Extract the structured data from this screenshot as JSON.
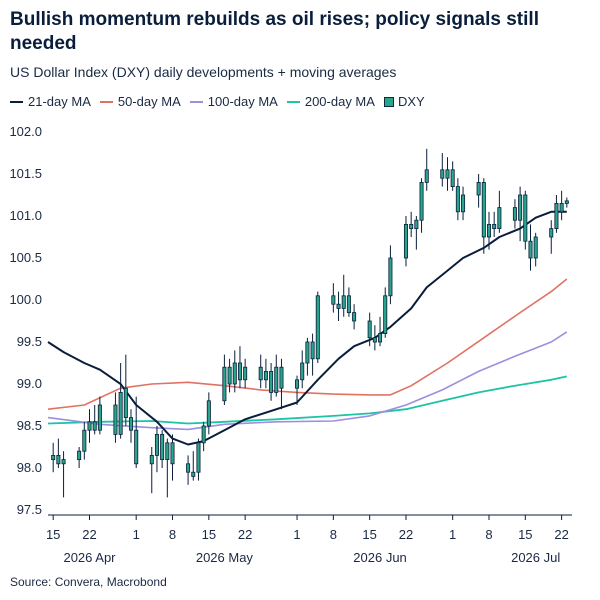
{
  "header": {
    "title": "Bullish momentum rebuilds as oil rises; policy signals still needed",
    "subtitle": "US Dollar Index (DXY) daily developments + moving averages"
  },
  "footer": {
    "source": "Source: Convera, Macrobond"
  },
  "colors": {
    "ma21": "#0a1e3c",
    "ma50": "#e07264",
    "ma100": "#9b8fe0",
    "ma200": "#1cc4a4",
    "candle": "#2aa58c",
    "wick": "#0a1e3c"
  },
  "chart_data": {
    "type": "candlestick",
    "title": "Bullish momentum rebuilds as oil rises; policy signals still needed",
    "subtitle": "US Dollar Index (DXY) daily developments + moving averages",
    "ylim": [
      97.5,
      102.0
    ],
    "yticks": [
      "97.5",
      "98.0",
      "98.5",
      "99.0",
      "99.5",
      "100.0",
      "100.5",
      "101.0",
      "101.5",
      "102.0"
    ],
    "xlim": [
      "2026-04-14",
      "2026-07-24"
    ],
    "xticks": [
      {
        "date": "2026-04-15",
        "label": "15"
      },
      {
        "date": "2026-04-22",
        "label": "22"
      },
      {
        "date": "2026-05-01",
        "label": "1"
      },
      {
        "date": "2026-05-08",
        "label": "8"
      },
      {
        "date": "2026-05-15",
        "label": "15"
      },
      {
        "date": "2026-05-22",
        "label": "22"
      },
      {
        "date": "2026-06-01",
        "label": "1"
      },
      {
        "date": "2026-06-08",
        "label": "8"
      },
      {
        "date": "2026-06-15",
        "label": "15"
      },
      {
        "date": "2026-06-22",
        "label": "22"
      },
      {
        "date": "2026-07-01",
        "label": "1"
      },
      {
        "date": "2026-07-08",
        "label": "8"
      },
      {
        "date": "2026-07-15",
        "label": "15"
      },
      {
        "date": "2026-07-22",
        "label": "22"
      }
    ],
    "months": [
      {
        "date": "2026-04-22",
        "label": "2026 Apr"
      },
      {
        "date": "2026-05-18",
        "label": "2026 May"
      },
      {
        "date": "2026-06-17",
        "label": "2026 Jun"
      },
      {
        "date": "2026-07-17",
        "label": "2026 Jul"
      }
    ],
    "legend": [
      "21-day MA",
      "50-day MA",
      "100-day MA",
      "200-day MA",
      "DXY"
    ],
    "legend_placement": "top-left",
    "grid": false,
    "candles": [
      {
        "d": "2026-04-15",
        "o": 98.1,
        "h": 98.3,
        "l": 97.95,
        "c": 98.15
      },
      {
        "d": "2026-04-16",
        "o": 98.15,
        "h": 98.35,
        "l": 98.0,
        "c": 98.05
      },
      {
        "d": "2026-04-17",
        "o": 98.05,
        "h": 98.2,
        "l": 97.65,
        "c": 98.1
      },
      {
        "d": "2026-04-20",
        "o": 98.1,
        "h": 98.25,
        "l": 98.0,
        "c": 98.2
      },
      {
        "d": "2026-04-21",
        "o": 98.2,
        "h": 98.55,
        "l": 98.1,
        "c": 98.45
      },
      {
        "d": "2026-04-22",
        "o": 98.45,
        "h": 98.7,
        "l": 98.3,
        "c": 98.55
      },
      {
        "d": "2026-04-23",
        "o": 98.55,
        "h": 98.75,
        "l": 98.4,
        "c": 98.45
      },
      {
        "d": "2026-04-24",
        "o": 98.45,
        "h": 98.85,
        "l": 98.4,
        "c": 98.75
      },
      {
        "d": "2026-04-27",
        "o": 98.75,
        "h": 98.9,
        "l": 98.3,
        "c": 98.4
      },
      {
        "d": "2026-04-28",
        "o": 98.4,
        "h": 99.25,
        "l": 98.35,
        "c": 98.9
      },
      {
        "d": "2026-04-29",
        "o": 98.95,
        "h": 99.35,
        "l": 98.5,
        "c": 98.6
      },
      {
        "d": "2026-04-30",
        "o": 98.6,
        "h": 98.7,
        "l": 98.3,
        "c": 98.45
      },
      {
        "d": "2026-05-01",
        "o": 98.45,
        "h": 98.85,
        "l": 98.0,
        "c": 98.05
      },
      {
        "d": "2026-05-04",
        "o": 98.05,
        "h": 98.25,
        "l": 97.7,
        "c": 98.15
      },
      {
        "d": "2026-05-05",
        "o": 98.15,
        "h": 98.5,
        "l": 97.95,
        "c": 98.4
      },
      {
        "d": "2026-05-06",
        "o": 98.4,
        "h": 98.45,
        "l": 98.0,
        "c": 98.1
      },
      {
        "d": "2026-05-07",
        "o": 98.1,
        "h": 98.35,
        "l": 97.65,
        "c": 98.3
      },
      {
        "d": "2026-05-08",
        "o": 98.3,
        "h": 98.4,
        "l": 97.85,
        "c": 98.05
      },
      {
        "d": "2026-05-11",
        "o": 98.05,
        "h": 98.15,
        "l": 97.8,
        "c": 97.95
      },
      {
        "d": "2026-05-12",
        "o": 97.95,
        "h": 98.2,
        "l": 97.85,
        "c": 97.9
      },
      {
        "d": "2026-05-13",
        "o": 97.95,
        "h": 98.35,
        "l": 97.85,
        "c": 98.3
      },
      {
        "d": "2026-05-14",
        "o": 98.3,
        "h": 98.55,
        "l": 98.2,
        "c": 98.5
      },
      {
        "d": "2026-05-15",
        "o": 98.5,
        "h": 98.9,
        "l": 98.4,
        "c": 98.8
      },
      {
        "d": "2026-05-18",
        "o": 98.8,
        "h": 99.35,
        "l": 98.75,
        "c": 99.2
      },
      {
        "d": "2026-05-19",
        "o": 99.2,
        "h": 99.3,
        "l": 98.9,
        "c": 99.0
      },
      {
        "d": "2026-05-20",
        "o": 99.0,
        "h": 99.4,
        "l": 98.9,
        "c": 99.25
      },
      {
        "d": "2026-05-21",
        "o": 99.25,
        "h": 99.45,
        "l": 98.95,
        "c": 99.05
      },
      {
        "d": "2026-05-22",
        "o": 99.05,
        "h": 99.3,
        "l": 98.95,
        "c": 99.2
      },
      {
        "d": "2026-05-25",
        "o": 99.2,
        "h": 99.35,
        "l": 98.95,
        "c": 99.05
      },
      {
        "d": "2026-05-26",
        "o": 99.05,
        "h": 99.3,
        "l": 98.95,
        "c": 99.15
      },
      {
        "d": "2026-05-27",
        "o": 99.15,
        "h": 99.25,
        "l": 98.8,
        "c": 98.9
      },
      {
        "d": "2026-05-28",
        "o": 98.9,
        "h": 99.35,
        "l": 98.85,
        "c": 99.2
      },
      {
        "d": "2026-05-29",
        "o": 99.2,
        "h": 99.3,
        "l": 98.7,
        "c": 98.95
      },
      {
        "d": "2026-06-01",
        "o": 98.95,
        "h": 99.1,
        "l": 98.75,
        "c": 99.05
      },
      {
        "d": "2026-06-02",
        "o": 99.05,
        "h": 99.4,
        "l": 98.95,
        "c": 99.25
      },
      {
        "d": "2026-06-03",
        "o": 99.25,
        "h": 99.55,
        "l": 99.1,
        "c": 99.5
      },
      {
        "d": "2026-06-04",
        "o": 99.5,
        "h": 99.6,
        "l": 99.1,
        "c": 99.3
      },
      {
        "d": "2026-06-05",
        "o": 99.3,
        "h": 100.1,
        "l": 99.25,
        "c": 100.05
      },
      {
        "d": "2026-06-08",
        "o": 100.05,
        "h": 100.2,
        "l": 99.85,
        "c": 99.95
      },
      {
        "d": "2026-06-09",
        "o": 99.95,
        "h": 100.1,
        "l": 99.75,
        "c": 99.9
      },
      {
        "d": "2026-06-10",
        "o": 99.9,
        "h": 100.3,
        "l": 99.8,
        "c": 100.05
      },
      {
        "d": "2026-06-11",
        "o": 100.05,
        "h": 100.15,
        "l": 99.8,
        "c": 99.85
      },
      {
        "d": "2026-06-12",
        "o": 99.85,
        "h": 99.95,
        "l": 99.65,
        "c": 99.75
      },
      {
        "d": "2026-06-15",
        "o": 99.75,
        "h": 99.85,
        "l": 99.45,
        "c": 99.55
      },
      {
        "d": "2026-06-16",
        "o": 99.55,
        "h": 99.7,
        "l": 99.4,
        "c": 99.5
      },
      {
        "d": "2026-06-17",
        "o": 99.5,
        "h": 99.8,
        "l": 99.45,
        "c": 99.6
      },
      {
        "d": "2026-06-18",
        "o": 99.6,
        "h": 100.15,
        "l": 99.55,
        "c": 100.05
      },
      {
        "d": "2026-06-19",
        "o": 100.05,
        "h": 100.65,
        "l": 99.95,
        "c": 100.5
      },
      {
        "d": "2026-06-22",
        "o": 100.5,
        "h": 101.0,
        "l": 100.4,
        "c": 100.9
      },
      {
        "d": "2026-06-23",
        "o": 100.9,
        "h": 101.05,
        "l": 100.75,
        "c": 100.85
      },
      {
        "d": "2026-06-24",
        "o": 100.85,
        "h": 101.0,
        "l": 100.6,
        "c": 100.95
      },
      {
        "d": "2026-06-25",
        "o": 100.95,
        "h": 101.45,
        "l": 100.8,
        "c": 101.4
      },
      {
        "d": "2026-06-26",
        "o": 101.4,
        "h": 101.8,
        "l": 101.3,
        "c": 101.55
      },
      {
        "d": "2026-06-29",
        "o": 101.55,
        "h": 101.75,
        "l": 101.35,
        "c": 101.45
      },
      {
        "d": "2026-06-30",
        "o": 101.45,
        "h": 101.7,
        "l": 101.3,
        "c": 101.55
      },
      {
        "d": "2026-07-01",
        "o": 101.55,
        "h": 101.65,
        "l": 101.3,
        "c": 101.35
      },
      {
        "d": "2026-07-02",
        "o": 101.35,
        "h": 101.45,
        "l": 100.95,
        "c": 101.05
      },
      {
        "d": "2026-07-03",
        "o": 101.05,
        "h": 101.35,
        "l": 100.95,
        "c": 101.25
      },
      {
        "d": "2026-07-06",
        "o": 101.25,
        "h": 101.5,
        "l": 101.1,
        "c": 101.4
      },
      {
        "d": "2026-07-07",
        "o": 101.4,
        "h": 101.45,
        "l": 100.55,
        "c": 100.75
      },
      {
        "d": "2026-07-08",
        "o": 100.75,
        "h": 101.05,
        "l": 100.6,
        "c": 100.9
      },
      {
        "d": "2026-07-09",
        "o": 100.9,
        "h": 101.05,
        "l": 100.75,
        "c": 100.85
      },
      {
        "d": "2026-07-10",
        "o": 100.85,
        "h": 101.3,
        "l": 100.8,
        "c": 101.1
      },
      {
        "d": "2026-07-13",
        "o": 101.1,
        "h": 101.2,
        "l": 100.85,
        "c": 100.95
      },
      {
        "d": "2026-07-14",
        "o": 100.95,
        "h": 101.35,
        "l": 100.7,
        "c": 101.25
      },
      {
        "d": "2026-07-15",
        "o": 101.25,
        "h": 101.3,
        "l": 100.6,
        "c": 100.7
      },
      {
        "d": "2026-07-16",
        "o": 100.7,
        "h": 100.9,
        "l": 100.35,
        "c": 100.5
      },
      {
        "d": "2026-07-17",
        "o": 100.5,
        "h": 100.8,
        "l": 100.4,
        "c": 100.75
      },
      {
        "d": "2026-07-20",
        "o": 100.75,
        "h": 100.95,
        "l": 100.55,
        "c": 100.85
      },
      {
        "d": "2026-07-21",
        "o": 100.85,
        "h": 101.25,
        "l": 100.8,
        "c": 101.15
      },
      {
        "d": "2026-07-22",
        "o": 101.15,
        "h": 101.3,
        "l": 100.95,
        "c": 101.05
      },
      {
        "d": "2026-07-23",
        "o": 101.15,
        "h": 101.22,
        "l": 101.1,
        "c": 101.18
      }
    ],
    "series": [
      {
        "name": "21-day MA",
        "points": [
          [
            "2026-04-14",
            99.5
          ],
          [
            "2026-04-17",
            99.38
          ],
          [
            "2026-04-21",
            99.25
          ],
          [
            "2026-04-24",
            99.17
          ],
          [
            "2026-04-28",
            99.0
          ],
          [
            "2026-05-01",
            98.75
          ],
          [
            "2026-05-05",
            98.55
          ],
          [
            "2026-05-08",
            98.35
          ],
          [
            "2026-05-11",
            98.28
          ],
          [
            "2026-05-14",
            98.32
          ],
          [
            "2026-05-18",
            98.45
          ],
          [
            "2026-05-22",
            98.58
          ],
          [
            "2026-05-27",
            98.68
          ],
          [
            "2026-06-01",
            98.78
          ],
          [
            "2026-06-05",
            99.05
          ],
          [
            "2026-06-09",
            99.3
          ],
          [
            "2026-06-12",
            99.45
          ],
          [
            "2026-06-16",
            99.55
          ],
          [
            "2026-06-19",
            99.68
          ],
          [
            "2026-06-23",
            99.9
          ],
          [
            "2026-06-26",
            100.15
          ],
          [
            "2026-06-30",
            100.35
          ],
          [
            "2026-07-03",
            100.5
          ],
          [
            "2026-07-07",
            100.62
          ],
          [
            "2026-07-10",
            100.75
          ],
          [
            "2026-07-14",
            100.85
          ],
          [
            "2026-07-17",
            100.98
          ],
          [
            "2026-07-20",
            101.05
          ],
          [
            "2026-07-23",
            101.05
          ]
        ]
      },
      {
        "name": "50-day MA",
        "points": [
          [
            "2026-04-14",
            98.7
          ],
          [
            "2026-04-21",
            98.75
          ],
          [
            "2026-04-28",
            98.95
          ],
          [
            "2026-05-04",
            99.0
          ],
          [
            "2026-05-11",
            99.02
          ],
          [
            "2026-05-18",
            98.98
          ],
          [
            "2026-05-25",
            98.93
          ],
          [
            "2026-06-01",
            98.9
          ],
          [
            "2026-06-08",
            98.88
          ],
          [
            "2026-06-15",
            98.87
          ],
          [
            "2026-06-19",
            98.87
          ],
          [
            "2026-06-23",
            98.98
          ],
          [
            "2026-06-30",
            99.25
          ],
          [
            "2026-07-07",
            99.55
          ],
          [
            "2026-07-14",
            99.85
          ],
          [
            "2026-07-20",
            100.1
          ],
          [
            "2026-07-23",
            100.25
          ]
        ]
      },
      {
        "name": "100-day MA",
        "points": [
          [
            "2026-04-14",
            98.6
          ],
          [
            "2026-04-24",
            98.52
          ],
          [
            "2026-05-04",
            98.48
          ],
          [
            "2026-05-11",
            98.46
          ],
          [
            "2026-05-18",
            98.52
          ],
          [
            "2026-05-28",
            98.55
          ],
          [
            "2026-06-08",
            98.56
          ],
          [
            "2026-06-15",
            98.62
          ],
          [
            "2026-06-22",
            98.75
          ],
          [
            "2026-06-29",
            98.93
          ],
          [
            "2026-07-06",
            99.15
          ],
          [
            "2026-07-13",
            99.33
          ],
          [
            "2026-07-20",
            99.5
          ],
          [
            "2026-07-23",
            99.62
          ]
        ]
      },
      {
        "name": "200-day MA",
        "points": [
          [
            "2026-04-14",
            98.53
          ],
          [
            "2026-04-24",
            98.55
          ],
          [
            "2026-05-04",
            98.56
          ],
          [
            "2026-05-11",
            98.53
          ],
          [
            "2026-05-18",
            98.55
          ],
          [
            "2026-05-28",
            98.58
          ],
          [
            "2026-06-08",
            98.62
          ],
          [
            "2026-06-15",
            98.65
          ],
          [
            "2026-06-22",
            98.7
          ],
          [
            "2026-06-29",
            98.8
          ],
          [
            "2026-07-06",
            98.9
          ],
          [
            "2026-07-13",
            98.98
          ],
          [
            "2026-07-20",
            99.05
          ],
          [
            "2026-07-23",
            99.09
          ]
        ]
      }
    ]
  }
}
